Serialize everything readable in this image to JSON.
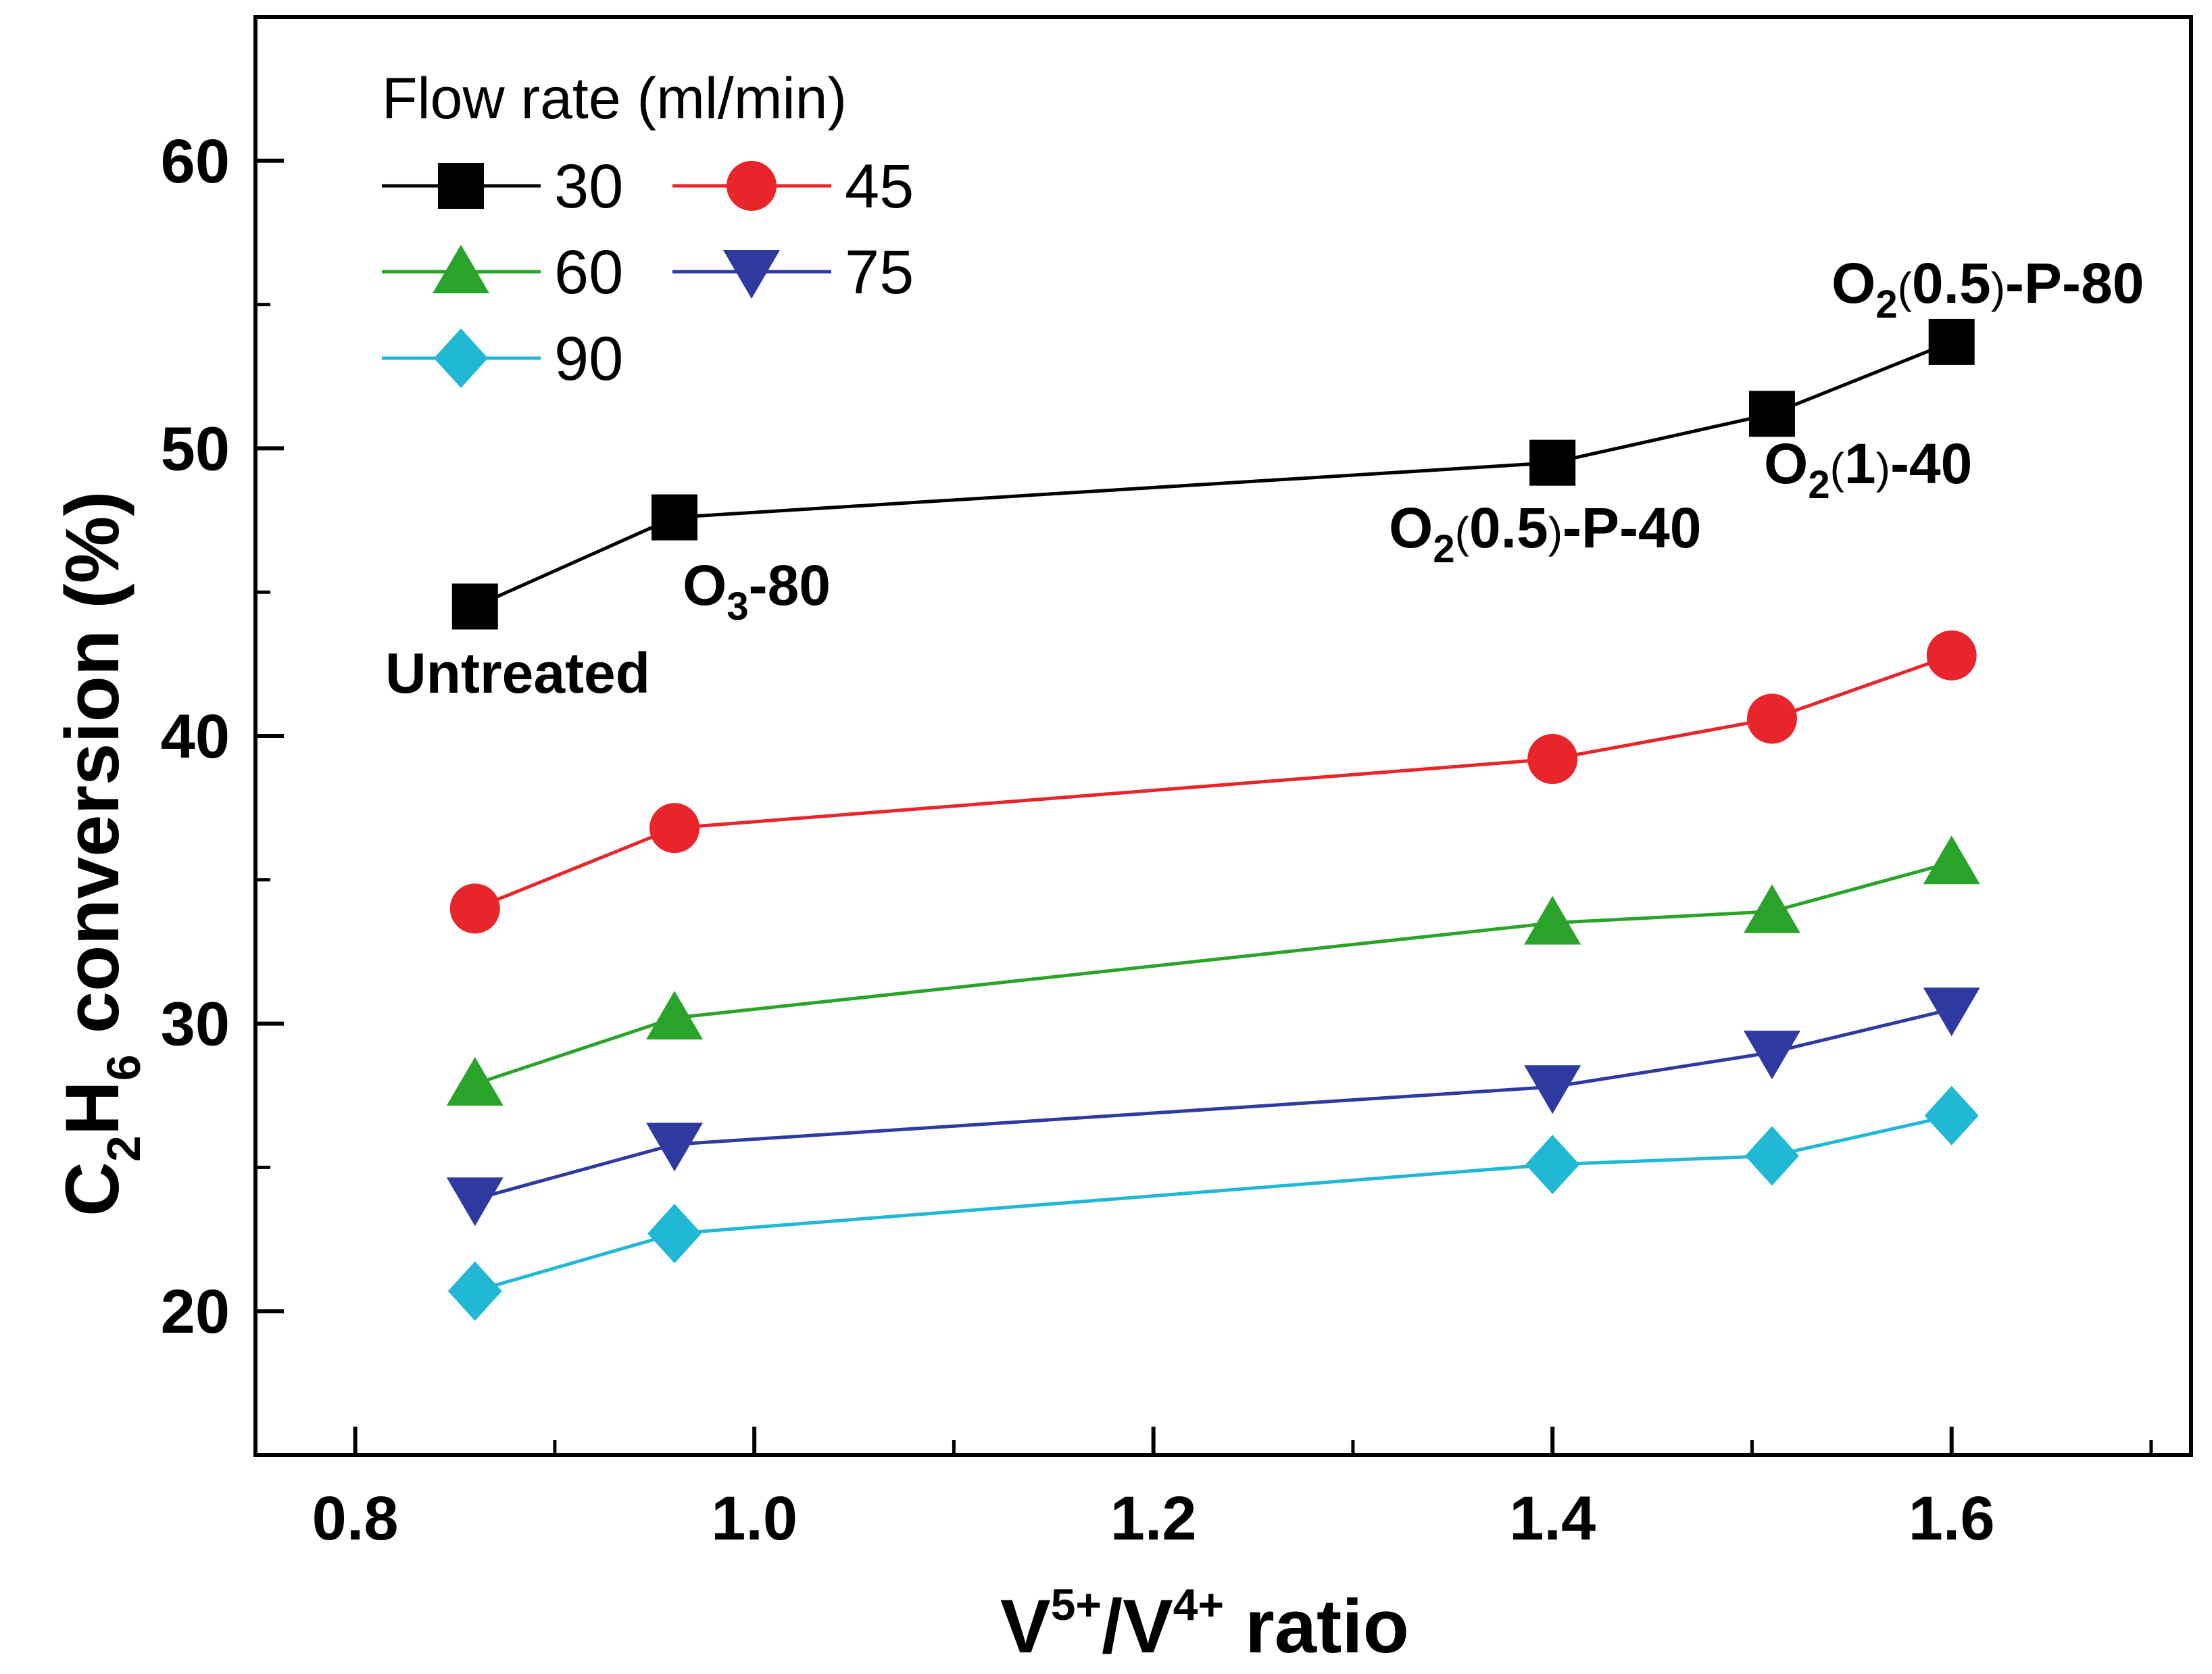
{
  "chart_data": {
    "type": "line",
    "xlabel": {
      "main": "V",
      "sup1": "5+",
      "mid": "/V",
      "sup2": "4+",
      "tail": " ratio"
    },
    "ylabel": {
      "c": "C",
      "sub2": "2",
      "h": "H",
      "sub6": "6",
      "tail": " conversion (%)"
    },
    "xlim": [
      0.75,
      1.72
    ],
    "ylim": [
      15,
      65
    ],
    "xticks": [
      0.8,
      1.0,
      1.2,
      1.4,
      1.6
    ],
    "xtick_labels": [
      "0.8",
      "1.0",
      "1.2",
      "1.4",
      "1.6"
    ],
    "xminor": [
      0.9,
      1.1,
      1.3,
      1.5,
      1.7
    ],
    "yticks": [
      20,
      30,
      40,
      50,
      60
    ],
    "ytick_labels": [
      "20",
      "30",
      "40",
      "50",
      "60"
    ],
    "yminor": [
      25,
      35,
      45,
      55
    ],
    "x": [
      0.86,
      0.96,
      1.4,
      1.51,
      1.6
    ],
    "legend_title": "Flow rate (ml/min)",
    "series": [
      {
        "name": "30",
        "marker": "square",
        "color": "#000000",
        "values": [
          44.5,
          47.6,
          49.5,
          51.2,
          53.7
        ]
      },
      {
        "name": "45",
        "marker": "circle",
        "color": "#e8252a",
        "values": [
          34.0,
          36.8,
          39.2,
          40.6,
          42.8
        ]
      },
      {
        "name": "60",
        "marker": "triangle-up",
        "color": "#2aa32a",
        "values": [
          27.9,
          30.2,
          33.5,
          33.9,
          35.6
        ]
      },
      {
        "name": "75",
        "marker": "triangle-down",
        "color": "#2f3aa0",
        "values": [
          23.9,
          25.8,
          27.8,
          29.0,
          30.5
        ]
      },
      {
        "name": "90",
        "marker": "diamond",
        "color": "#20b8d4",
        "values": [
          20.7,
          22.7,
          25.1,
          25.4,
          26.8
        ]
      }
    ],
    "annotations": [
      {
        "id": "untreated",
        "text": "Untreated"
      },
      {
        "id": "o3_80",
        "o": "O",
        "sub": "3",
        "text": "-80"
      },
      {
        "id": "o2_05_p_40",
        "o": "O",
        "sub": "2",
        "paren_open": "(",
        "val": "0.5",
        "paren_close": ")",
        "text": "-P-40"
      },
      {
        "id": "o2_1_40",
        "o": "O",
        "sub": "2",
        "paren_open": "(",
        "val": "1",
        "paren_close": ")",
        "text": "-40"
      },
      {
        "id": "o2_05_p_80",
        "o": "O",
        "sub": "2",
        "paren_open": "(",
        "val": "0.5",
        "paren_close": ")",
        "text": "-P-80"
      }
    ]
  }
}
